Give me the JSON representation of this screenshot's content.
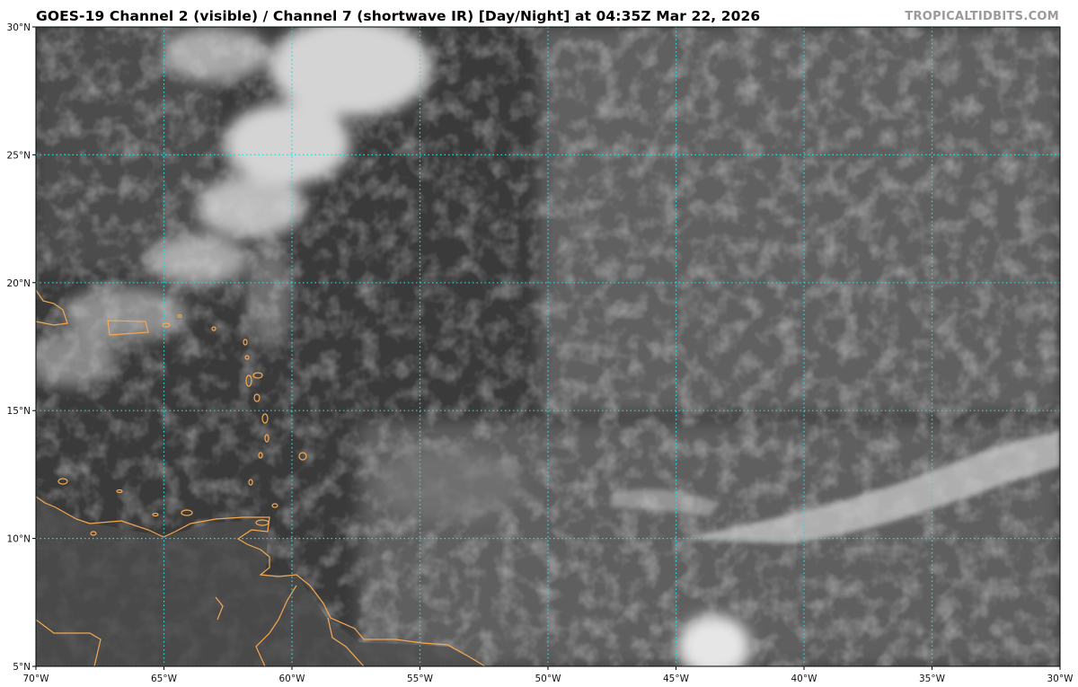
{
  "title": "GOES-19 Channel 2 (visible) / Channel 7 (shortwave IR) [Day/Night] at 04:35Z Mar 22, 2026",
  "credit": "TROPICALTIDBITS.COM",
  "map": {
    "extent": {
      "lon_min": -70,
      "lon_max": -30,
      "lat_min": 5,
      "lat_max": 30
    },
    "gridline_color": "#33d6d6",
    "coastline_color": "#f5a850",
    "lon_ticks": [
      {
        "value": -70,
        "label": "70°W"
      },
      {
        "value": -65,
        "label": "65°W"
      },
      {
        "value": -60,
        "label": "60°W"
      },
      {
        "value": -55,
        "label": "55°W"
      },
      {
        "value": -50,
        "label": "50°W"
      },
      {
        "value": -45,
        "label": "45°W"
      },
      {
        "value": -40,
        "label": "40°W"
      },
      {
        "value": -35,
        "label": "35°W"
      },
      {
        "value": -30,
        "label": "30°W"
      }
    ],
    "lat_ticks": [
      {
        "value": 5,
        "label": "5°N"
      },
      {
        "value": 10,
        "label": "10°N"
      },
      {
        "value": 15,
        "label": "15°N"
      },
      {
        "value": 20,
        "label": "20°N"
      },
      {
        "value": 25,
        "label": "25°N"
      },
      {
        "value": 30,
        "label": "30°N"
      }
    ]
  }
}
